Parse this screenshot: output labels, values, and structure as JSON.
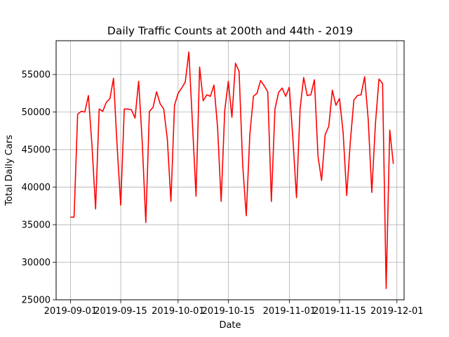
{
  "chart_data": {
    "type": "line",
    "title": "Daily Traffic Counts at 200th and 44th - 2019",
    "xlabel": "Date",
    "ylabel": "Total Daily Cars",
    "xlim": [
      "2019-08-28",
      "2019-12-03"
    ],
    "ylim": [
      25000,
      59500
    ],
    "grid": true,
    "line_color": "#ff0000",
    "xticks": [
      "2019-09-01",
      "2019-09-15",
      "2019-10-01",
      "2019-10-15",
      "2019-11-01",
      "2019-11-15",
      "2019-12-01"
    ],
    "yticks": [
      25000,
      30000,
      35000,
      40000,
      45000,
      50000,
      55000
    ],
    "series": [
      {
        "x": [
          "2019-09-01",
          "2019-09-02",
          "2019-09-03",
          "2019-09-04",
          "2019-09-05",
          "2019-09-06",
          "2019-09-07",
          "2019-09-08",
          "2019-09-09",
          "2019-09-10",
          "2019-09-11",
          "2019-09-12",
          "2019-09-13",
          "2019-09-14",
          "2019-09-15",
          "2019-09-16",
          "2019-09-17",
          "2019-09-18",
          "2019-09-19",
          "2019-09-20",
          "2019-09-21",
          "2019-09-22",
          "2019-09-23",
          "2019-09-24",
          "2019-09-25",
          "2019-09-26",
          "2019-09-27",
          "2019-09-28",
          "2019-09-29",
          "2019-09-30",
          "2019-10-01",
          "2019-10-02",
          "2019-10-03",
          "2019-10-04",
          "2019-10-05",
          "2019-10-06",
          "2019-10-07",
          "2019-10-08",
          "2019-10-09",
          "2019-10-10",
          "2019-10-11",
          "2019-10-12",
          "2019-10-13",
          "2019-10-14",
          "2019-10-15",
          "2019-10-16",
          "2019-10-17",
          "2019-10-18",
          "2019-10-19",
          "2019-10-20",
          "2019-10-21",
          "2019-10-22",
          "2019-10-23",
          "2019-10-24",
          "2019-10-25",
          "2019-10-26",
          "2019-10-27",
          "2019-10-28",
          "2019-10-29",
          "2019-10-30",
          "2019-10-31",
          "2019-11-01",
          "2019-11-02",
          "2019-11-03",
          "2019-11-04",
          "2019-11-05",
          "2019-11-06",
          "2019-11-07",
          "2019-11-08",
          "2019-11-09",
          "2019-11-10",
          "2019-11-11",
          "2019-11-12",
          "2019-11-13",
          "2019-11-14",
          "2019-11-15",
          "2019-11-16",
          "2019-11-17",
          "2019-11-18",
          "2019-11-19",
          "2019-11-20",
          "2019-11-21",
          "2019-11-22",
          "2019-11-23",
          "2019-11-24",
          "2019-11-25",
          "2019-11-26",
          "2019-11-27",
          "2019-11-28",
          "2019-11-29",
          "2019-11-30"
        ],
        "y": [
          36000,
          36000,
          49700,
          50100,
          50000,
          52200,
          45500,
          37100,
          50400,
          50100,
          51300,
          51800,
          54500,
          45500,
          37600,
          50400,
          50400,
          50300,
          49200,
          54100,
          46000,
          35300,
          50100,
          50600,
          52700,
          51100,
          50400,
          46400,
          38100,
          50900,
          52500,
          53200,
          54000,
          58000,
          48500,
          38800,
          56000,
          51500,
          52300,
          52100,
          53600,
          48000,
          38100,
          50200,
          54100,
          49300,
          56500,
          55400,
          43000,
          36200,
          47000,
          52100,
          52500,
          54200,
          53500,
          52700,
          38100,
          50400,
          52600,
          53200,
          52100,
          53300,
          46500,
          38600,
          50400,
          54600,
          52200,
          52300,
          54300,
          44100,
          40900,
          47000,
          48100,
          52900,
          50900,
          51800,
          47300,
          38900,
          46000,
          51600,
          52200,
          52300,
          54700,
          49000,
          39300,
          48400,
          54400,
          53800,
          26500,
          47600,
          43100
        ]
      }
    ]
  }
}
